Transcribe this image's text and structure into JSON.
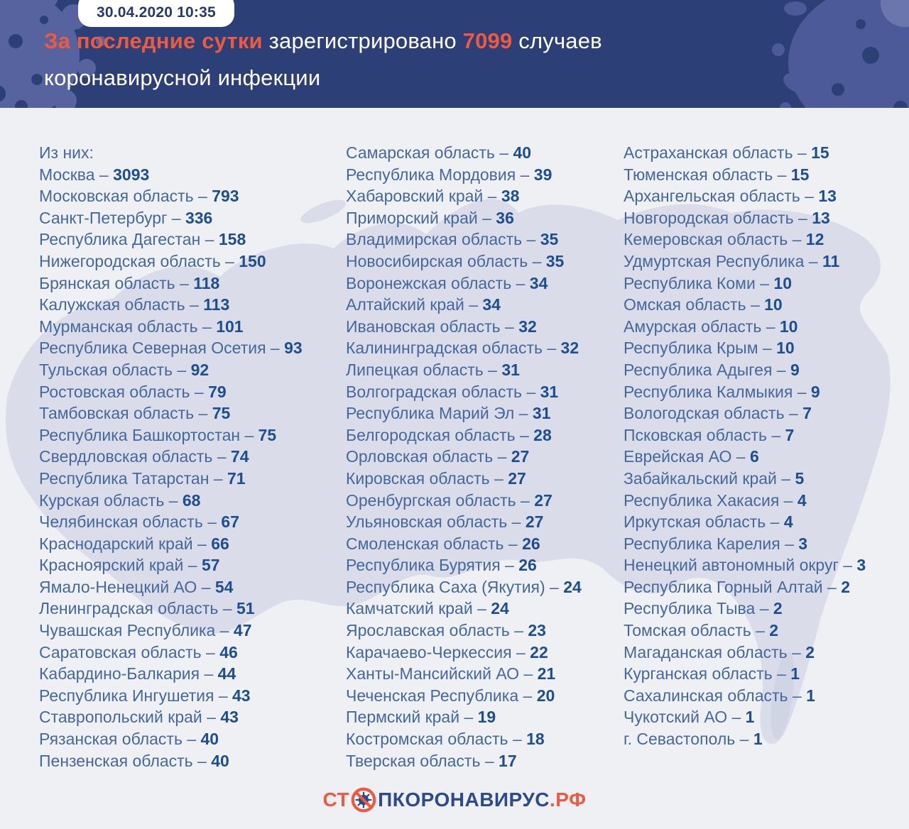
{
  "header": {
    "badge_datetime": "30.04.2020 10:35",
    "title": {
      "highlight": "За последние сутки",
      "middle": " зарегистрировано ",
      "number": "7099",
      "after_number": " случаев",
      "line2": "коронавирусной инфекции"
    }
  },
  "list": {
    "intro": "Из них:",
    "separator": " – "
  },
  "chart_data": {
    "type": "table",
    "title": "За последние сутки зарегистрировано 7099 случаев коронавирусной инфекции",
    "total_new_cases": 7099,
    "columns": [
      [
        {
          "name": "Москва",
          "value": "3093"
        },
        {
          "name": "Московская область",
          "value": "793"
        },
        {
          "name": "Санкт-Петербург",
          "value": "336"
        },
        {
          "name": "Республика Дагестан",
          "value": "158"
        },
        {
          "name": "Нижегородская область",
          "value": "150"
        },
        {
          "name": "Брянская область",
          "value": "118"
        },
        {
          "name": "Калужская область",
          "value": "113"
        },
        {
          "name": "Мурманская область",
          "value": "101"
        },
        {
          "name": "Республика Северная Осетия",
          "value": "93"
        },
        {
          "name": "Тульская область",
          "value": "92"
        },
        {
          "name": "Ростовская область",
          "value": "79"
        },
        {
          "name": "Тамбовская область",
          "value": "75"
        },
        {
          "name": "Республика Башкортостан",
          "value": "75"
        },
        {
          "name": "Свердловская область",
          "value": "74"
        },
        {
          "name": "Республика Татарстан",
          "value": "71"
        },
        {
          "name": "Курская область",
          "value": "68"
        },
        {
          "name": "Челябинская область",
          "value": "67"
        },
        {
          "name": "Краснодарский край",
          "value": "66"
        },
        {
          "name": "Красноярский край",
          "value": "57"
        },
        {
          "name": "Ямало-Ненецкий АО",
          "value": "54"
        },
        {
          "name": "Ленинградская область",
          "value": "51"
        },
        {
          "name": "Чувашская Республика",
          "value": "47"
        },
        {
          "name": "Саратовская область",
          "value": "46"
        },
        {
          "name": "Кабардино-Балкария",
          "value": "44"
        },
        {
          "name": "Республика Ингушетия",
          "value": "43"
        },
        {
          "name": "Ставропольский край",
          "value": "43"
        },
        {
          "name": "Рязанская область",
          "value": "40"
        },
        {
          "name": "Пензенская область",
          "value": "40"
        }
      ],
      [
        {
          "name": "Самарская область",
          "value": "40"
        },
        {
          "name": "Республика Мордовия",
          "value": "39"
        },
        {
          "name": "Хабаровский край",
          "value": "38"
        },
        {
          "name": "Приморский край",
          "value": "36"
        },
        {
          "name": "Владимирская область",
          "value": "35"
        },
        {
          "name": "Новосибирская область",
          "value": "35"
        },
        {
          "name": "Воронежская область",
          "value": "34"
        },
        {
          "name": "Алтайский край",
          "value": "34"
        },
        {
          "name": "Ивановская область",
          "value": "32"
        },
        {
          "name": "Калининградская область",
          "value": "32"
        },
        {
          "name": "Липецкая область",
          "value": "31"
        },
        {
          "name": "Волгоградская область",
          "value": "31"
        },
        {
          "name": "Республика Марий Эл",
          "value": "31"
        },
        {
          "name": "Белгородская область",
          "value": "28"
        },
        {
          "name": "Орловская область",
          "value": "27"
        },
        {
          "name": "Кировская область",
          "value": "27"
        },
        {
          "name": "Оренбургская область",
          "value": "27"
        },
        {
          "name": "Ульяновская область",
          "value": "27"
        },
        {
          "name": "Смоленская область",
          "value": "26"
        },
        {
          "name": "Республика Бурятия",
          "value": "26"
        },
        {
          "name": "Республика Саха (Якутия)",
          "value": "24"
        },
        {
          "name": "Камчатский край",
          "value": "24"
        },
        {
          "name": "Ярославская область",
          "value": "23"
        },
        {
          "name": "Карачаево-Черкессия",
          "value": "22"
        },
        {
          "name": "Ханты-Мансийский АО",
          "value": "21"
        },
        {
          "name": "Чеченская Республика",
          "value": "20"
        },
        {
          "name": "Пермский край",
          "value": "19"
        },
        {
          "name": "Костромская область",
          "value": "18"
        },
        {
          "name": "Тверская область",
          "value": "17"
        }
      ],
      [
        {
          "name": "Астраханская область",
          "value": "15"
        },
        {
          "name": "Тюменская область",
          "value": "15"
        },
        {
          "name": "Архангельская область",
          "value": "13"
        },
        {
          "name": "Новгородская область",
          "value": "13"
        },
        {
          "name": "Кемеровская область",
          "value": "12"
        },
        {
          "name": "Удмуртская Республика",
          "value": "11"
        },
        {
          "name": "Республика Коми",
          "value": "10"
        },
        {
          "name": "Омская область",
          "value": "10"
        },
        {
          "name": "Амурская область",
          "value": "10"
        },
        {
          "name": "Республика Крым",
          "value": "10"
        },
        {
          "name": "Республика Адыгея",
          "value": "9"
        },
        {
          "name": "Республика Калмыкия",
          "value": "9"
        },
        {
          "name": "Вологодская область",
          "value": "7"
        },
        {
          "name": "Псковская область",
          "value": "7"
        },
        {
          "name": "Еврейская АО",
          "value": "6"
        },
        {
          "name": "Забайкальский край",
          "value": "5"
        },
        {
          "name": "Республика Хакасия",
          "value": "4"
        },
        {
          "name": "Иркутская область",
          "value": "4"
        },
        {
          "name": "Республика Карелия",
          "value": "3"
        },
        {
          "name": "Ненецкий автономный округ",
          "value": "3"
        },
        {
          "name": "Республика Горный Алтай",
          "value": "2"
        },
        {
          "name": "Республика Тыва",
          "value": "2"
        },
        {
          "name": "Томская область",
          "value": "2"
        },
        {
          "name": "Магаданская область",
          "value": "2"
        },
        {
          "name": "Курганская область",
          "value": "1"
        },
        {
          "name": "Сахалинская область",
          "value": "1"
        },
        {
          "name": "Чукотский АО",
          "value": "1"
        },
        {
          "name": "г. Севастополь",
          "value": "1"
        }
      ]
    ]
  },
  "footer": {
    "logo_prefix": "СТ",
    "logo_core": "ПКОРОНАВИРУС",
    "logo_suffix": ".РФ"
  },
  "colors": {
    "header_bg": "#2c3f76",
    "accent_orange": "#ee5a41",
    "body_bg": "#eff0f4",
    "map_fill": "#c9cee0",
    "region_label": "#44689c",
    "region_value": "#1d4e90",
    "logo_navy": "#2d4a8f",
    "splat": "#56639f"
  }
}
